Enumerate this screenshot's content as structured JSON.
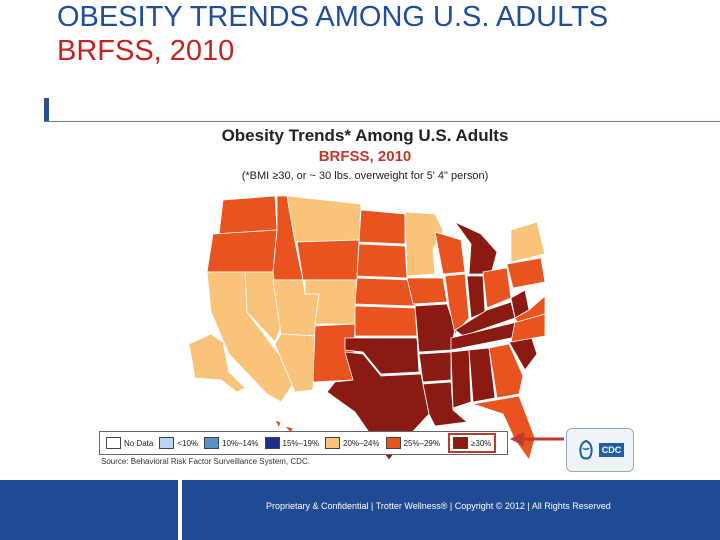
{
  "slide": {
    "title_line1": "OBESITY TRENDS AMONG U.S. ADULTS",
    "title_line2": "BRFSS, 2010"
  },
  "map": {
    "title": "Obesity Trends* Among U.S. Adults",
    "subtitle": "BRFSS, 2010",
    "note": "(*BMI ≥30, or ~ 30 lbs. overweight for 5' 4\" person)"
  },
  "legend": {
    "items": [
      {
        "label": "No Data",
        "color": "#ffffff"
      },
      {
        "label": "<10%",
        "color": "#b9d7ef"
      },
      {
        "label": "10%–14%",
        "color": "#5a8fd0"
      },
      {
        "label": "15%–19%",
        "color": "#1c2f8f"
      },
      {
        "label": "20%–24%",
        "color": "#f9c37a"
      },
      {
        "label": "25%–29%",
        "color": "#e8531f"
      },
      {
        "label": "≥30%",
        "color": "#8b1a12"
      }
    ],
    "source": "Source: Behavioral Risk Factor Surveillance System, CDC."
  },
  "badge": {
    "label": "CDC"
  },
  "footer": {
    "text": "Proprietary & Confidential | Trotter Wellness® | Copyright © 2012 | All Rights Reserved"
  }
}
